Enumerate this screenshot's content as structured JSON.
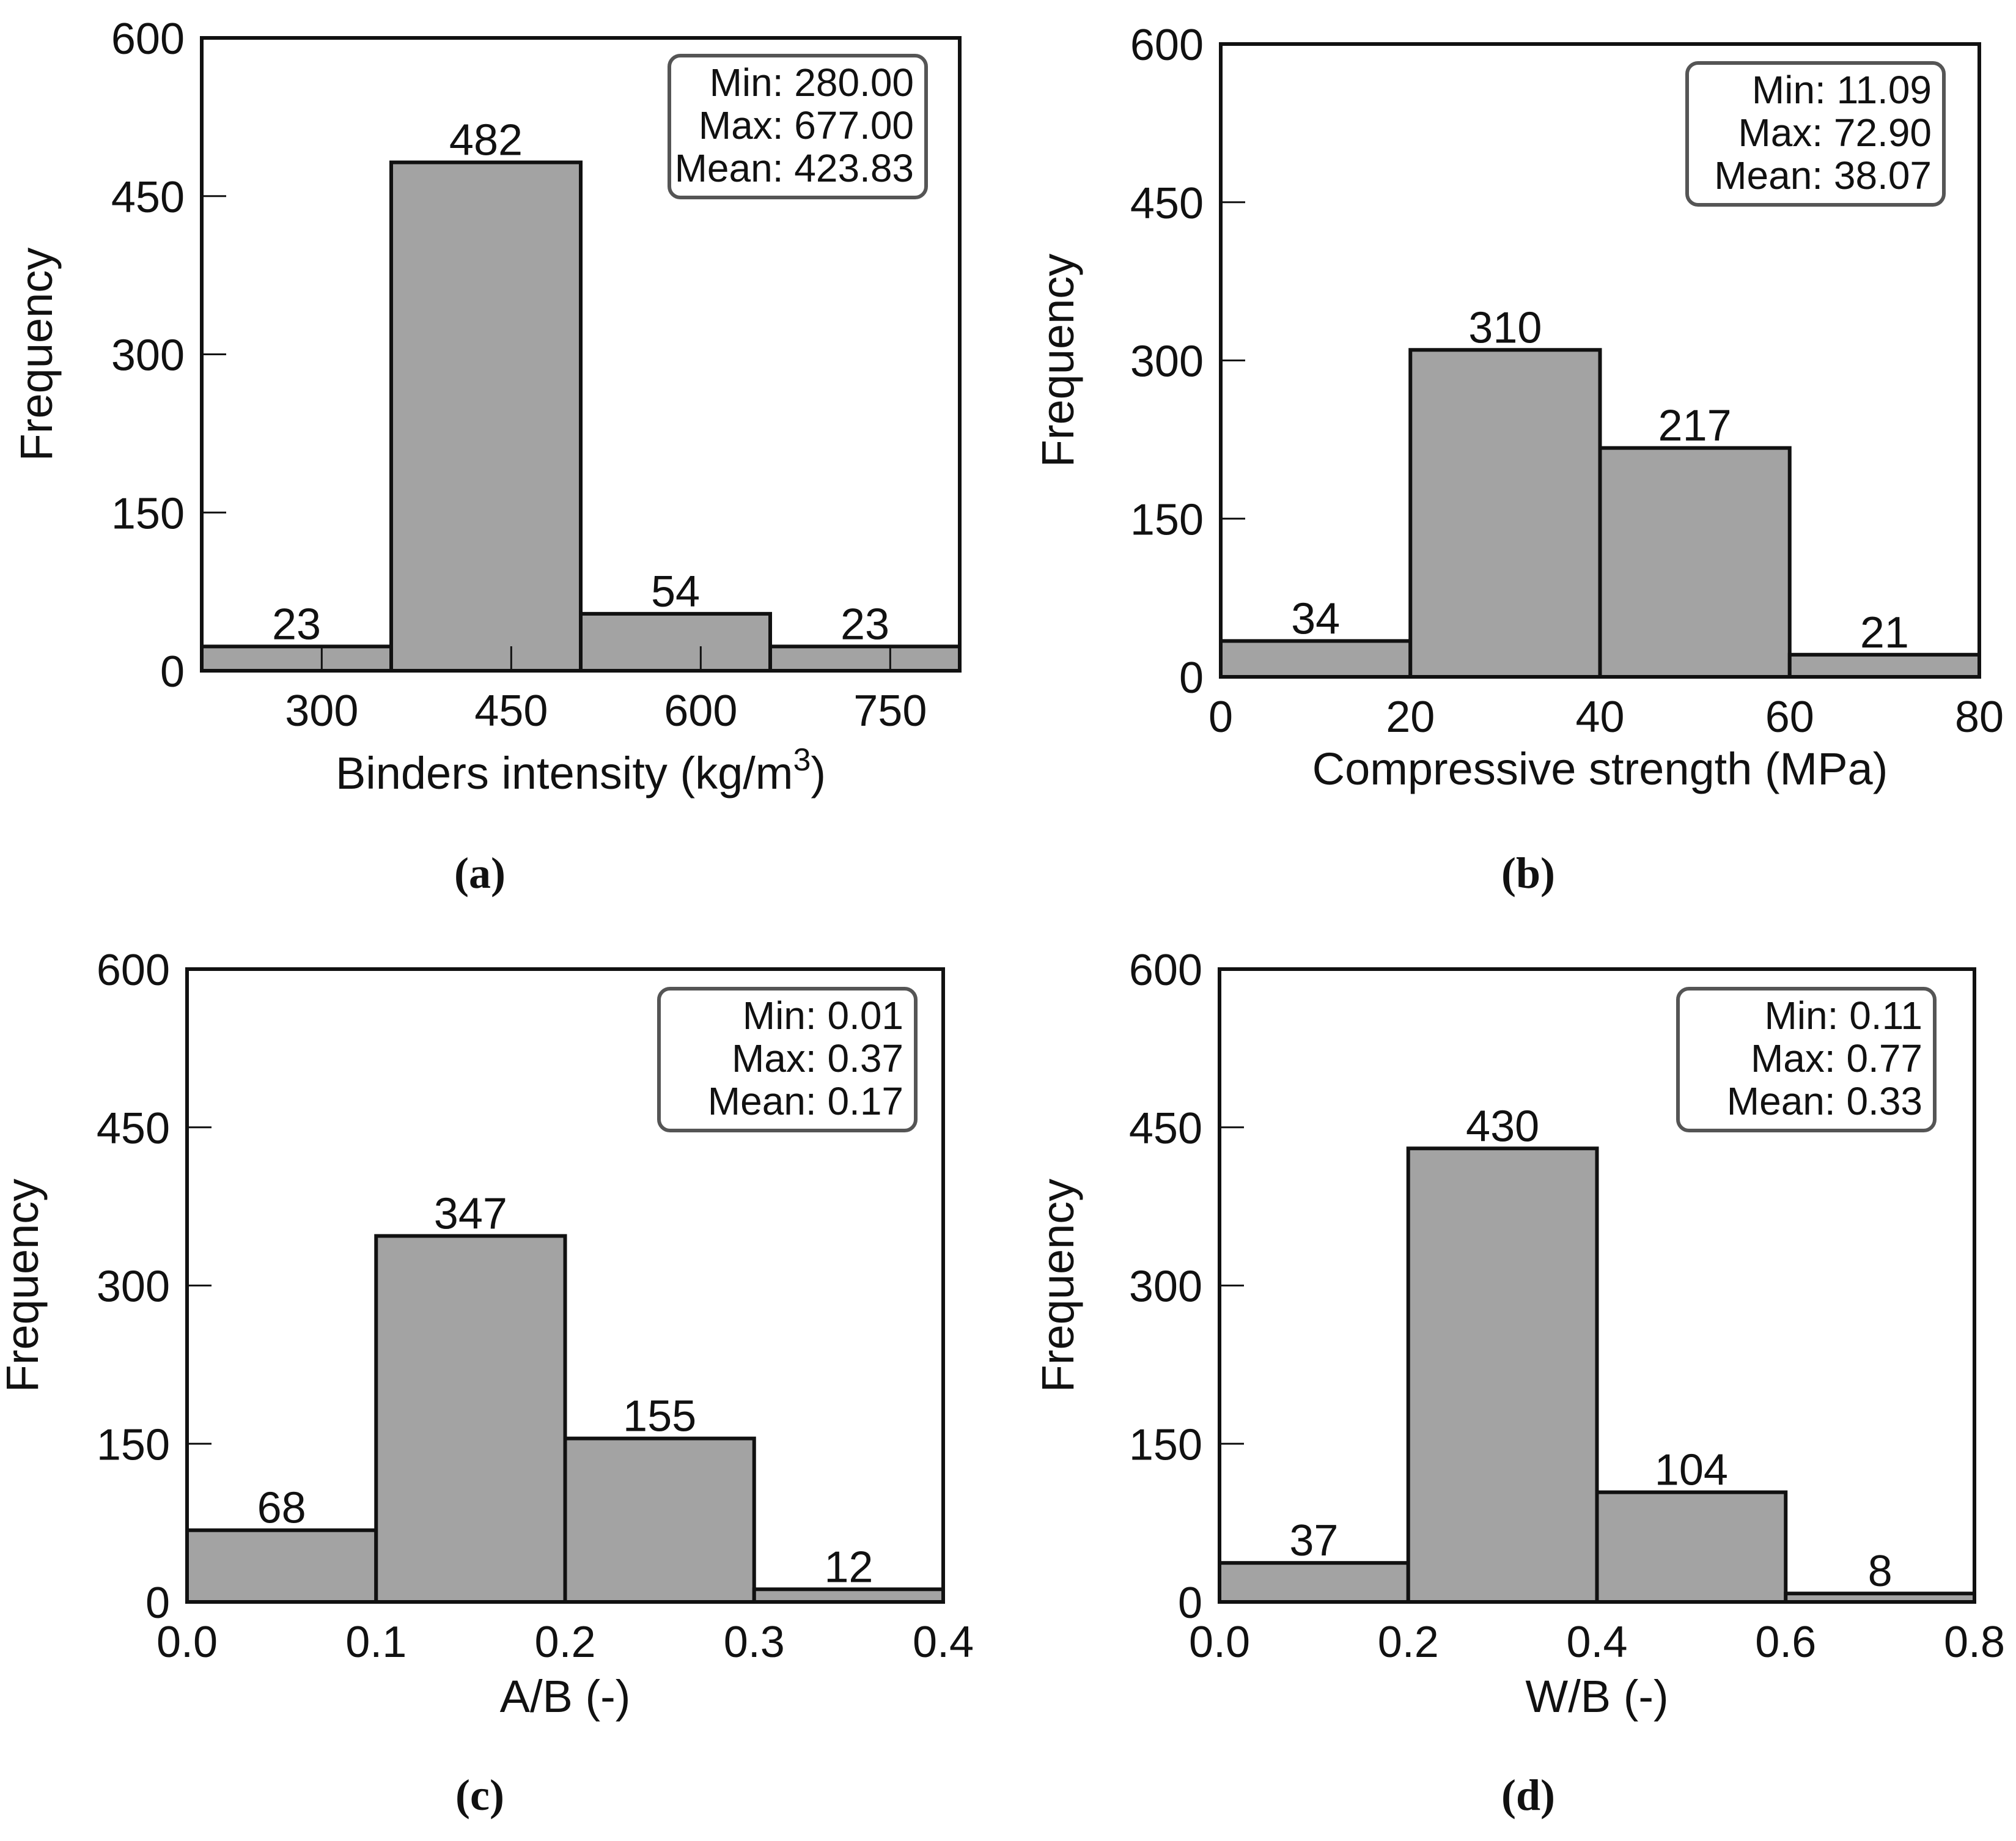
{
  "colors": {
    "bar_fill": "#a3a3a3",
    "stroke": "#111111",
    "text": "#111111",
    "stats_border": "#555555",
    "background": "#ffffff"
  },
  "chart_data": [
    {
      "type": "bar",
      "panel_label": "(a)",
      "title": "",
      "xlabel": "Binders intensity (kg/m",
      "xlabel_superscript": "3",
      "xlabel_suffix": ")",
      "ylabel": "Frequency",
      "xlim": [
        205,
        805
      ],
      "ylim": [
        0,
        600
      ],
      "xticks": [
        300,
        450,
        600,
        750
      ],
      "xtick_labels": [
        "300",
        "450",
        "600",
        "750"
      ],
      "yticks": [
        0,
        150,
        300,
        450,
        600
      ],
      "ytick_labels": [
        "0",
        "150",
        "300",
        "450",
        "600"
      ],
      "bin_edges": [
        205,
        355,
        505,
        655,
        805
      ],
      "values": [
        23,
        482,
        54,
        23
      ],
      "bar_labels": [
        "23",
        "482",
        "54",
        "23"
      ],
      "stats": {
        "min": "Min: 280.00",
        "max": "Max: 677.00",
        "mean": "Mean: 423.83"
      },
      "legend_position": "top-right",
      "grid": false
    },
    {
      "type": "bar",
      "panel_label": "(b)",
      "title": "",
      "xlabel": "Compressive strength (MPa)",
      "ylabel": "Frequency",
      "xlim": [
        0,
        80
      ],
      "ylim": [
        0,
        600
      ],
      "xticks": [
        0,
        20,
        40,
        60,
        80
      ],
      "xtick_labels": [
        "0",
        "20",
        "40",
        "60",
        "80"
      ],
      "yticks": [
        0,
        150,
        300,
        450,
        600
      ],
      "ytick_labels": [
        "0",
        "150",
        "300",
        "450",
        "600"
      ],
      "bin_edges": [
        0,
        20,
        40,
        60,
        80
      ],
      "values": [
        34,
        310,
        217,
        21
      ],
      "bar_labels": [
        "34",
        "310",
        "217",
        "21"
      ],
      "stats": {
        "min": "Min: 11.09",
        "max": "Max: 72.90",
        "mean": "Mean: 38.07"
      },
      "legend_position": "top-right",
      "grid": false
    },
    {
      "type": "bar",
      "panel_label": "(c)",
      "title": "",
      "xlabel": "A/B (-)",
      "ylabel": "Frequency",
      "xlim": [
        0,
        0.4
      ],
      "ylim": [
        0,
        600
      ],
      "xticks": [
        0,
        0.1,
        0.2,
        0.3,
        0.4
      ],
      "xtick_labels": [
        "0.0",
        "0.1",
        "0.2",
        "0.3",
        "0.4"
      ],
      "yticks": [
        0,
        150,
        300,
        450,
        600
      ],
      "ytick_labels": [
        "0",
        "150",
        "300",
        "450",
        "600"
      ],
      "bin_edges": [
        0,
        0.1,
        0.2,
        0.3,
        0.4
      ],
      "values": [
        68,
        347,
        155,
        12
      ],
      "bar_labels": [
        "68",
        "347",
        "155",
        "12"
      ],
      "stats": {
        "min": "Min: 0.01",
        "max": "Max: 0.37",
        "mean": "Mean: 0.17"
      },
      "legend_position": "top-right",
      "grid": false
    },
    {
      "type": "bar",
      "panel_label": "(d)",
      "title": "",
      "xlabel": "W/B (-)",
      "ylabel": "Frequency",
      "xlim": [
        0,
        0.8
      ],
      "ylim": [
        0,
        600
      ],
      "xticks": [
        0,
        0.2,
        0.4,
        0.6,
        0.8
      ],
      "xtick_labels": [
        "0.0",
        "0.2",
        "0.4",
        "0.6",
        "0.8"
      ],
      "yticks": [
        0,
        150,
        300,
        450,
        600
      ],
      "ytick_labels": [
        "0",
        "150",
        "300",
        "450",
        "600"
      ],
      "bin_edges": [
        0,
        0.2,
        0.4,
        0.6,
        0.8
      ],
      "values": [
        37,
        430,
        104,
        8
      ],
      "bar_labels": [
        "37",
        "430",
        "104",
        "8"
      ],
      "stats": {
        "min": "Min: 0.11",
        "max": "Max: 0.77",
        "mean": "Mean: 0.33"
      },
      "legend_position": "top-right",
      "grid": false
    }
  ]
}
